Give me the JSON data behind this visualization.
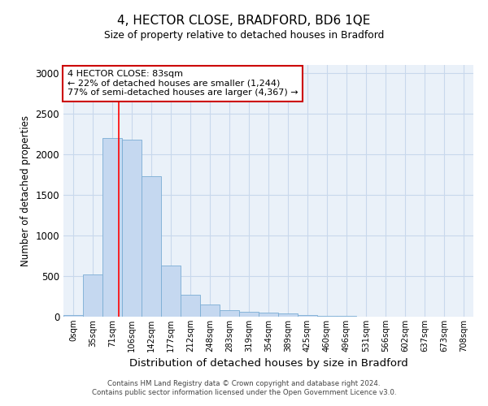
{
  "title": "4, HECTOR CLOSE, BRADFORD, BD6 1QE",
  "subtitle": "Size of property relative to detached houses in Bradford",
  "xlabel": "Distribution of detached houses by size in Bradford",
  "ylabel": "Number of detached properties",
  "bin_labels": [
    "0sqm",
    "35sqm",
    "71sqm",
    "106sqm",
    "142sqm",
    "177sqm",
    "212sqm",
    "248sqm",
    "283sqm",
    "319sqm",
    "354sqm",
    "389sqm",
    "425sqm",
    "460sqm",
    "496sqm",
    "531sqm",
    "566sqm",
    "602sqm",
    "637sqm",
    "673sqm",
    "708sqm"
  ],
  "bar_heights": [
    20,
    520,
    2200,
    2180,
    1730,
    635,
    270,
    150,
    80,
    60,
    50,
    40,
    25,
    15,
    8,
    4,
    3,
    2,
    2,
    1,
    1
  ],
  "bar_color": "#c5d8f0",
  "bar_edge_color": "#7aadd4",
  "grid_color": "#c8d8ec",
  "background_color": "#eaf1f9",
  "red_line_x": 2.33,
  "annotation_text": "4 HECTOR CLOSE: 83sqm\n← 22% of detached houses are smaller (1,244)\n77% of semi-detached houses are larger (4,367) →",
  "annotation_box_color": "#ffffff",
  "annotation_box_edge": "#cc0000",
  "ylim": [
    0,
    3100
  ],
  "yticks": [
    0,
    500,
    1000,
    1500,
    2000,
    2500,
    3000
  ],
  "footer_line1": "Contains HM Land Registry data © Crown copyright and database right 2024.",
  "footer_line2": "Contains public sector information licensed under the Open Government Licence v3.0."
}
